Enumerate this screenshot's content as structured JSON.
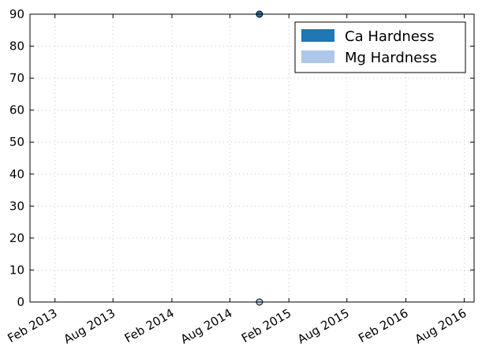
{
  "chart_data": {
    "type": "scatter",
    "title": "",
    "xlabel": "",
    "ylabel": "",
    "x_axis": {
      "type": "date",
      "range": [
        "2012-11-15",
        "2016-09-01"
      ],
      "ticks": [
        {
          "date": "2013-02-01",
          "label": "Feb 2013"
        },
        {
          "date": "2013-08-01",
          "label": "Aug 2013"
        },
        {
          "date": "2014-02-01",
          "label": "Feb 2014"
        },
        {
          "date": "2014-08-01",
          "label": "Aug 2014"
        },
        {
          "date": "2015-02-01",
          "label": "Feb 2015"
        },
        {
          "date": "2015-08-01",
          "label": "Aug 2015"
        },
        {
          "date": "2016-02-01",
          "label": "Feb 2016"
        },
        {
          "date": "2016-08-01",
          "label": "Aug 2016"
        }
      ]
    },
    "y_axis": {
      "range": [
        0,
        90
      ],
      "ticks": [
        0,
        10,
        20,
        30,
        40,
        50,
        60,
        70,
        80,
        90
      ]
    },
    "grid": true,
    "legend": "top-right",
    "series": [
      {
        "name": "Ca Hardness",
        "color": "#1f77b4",
        "points": [
          {
            "x": "2014-11-01",
            "y": 90
          }
        ]
      },
      {
        "name": "Mg Hardness",
        "color": "#aec7e8",
        "points": [
          {
            "x": "2014-11-01",
            "y": 0
          }
        ]
      }
    ]
  }
}
